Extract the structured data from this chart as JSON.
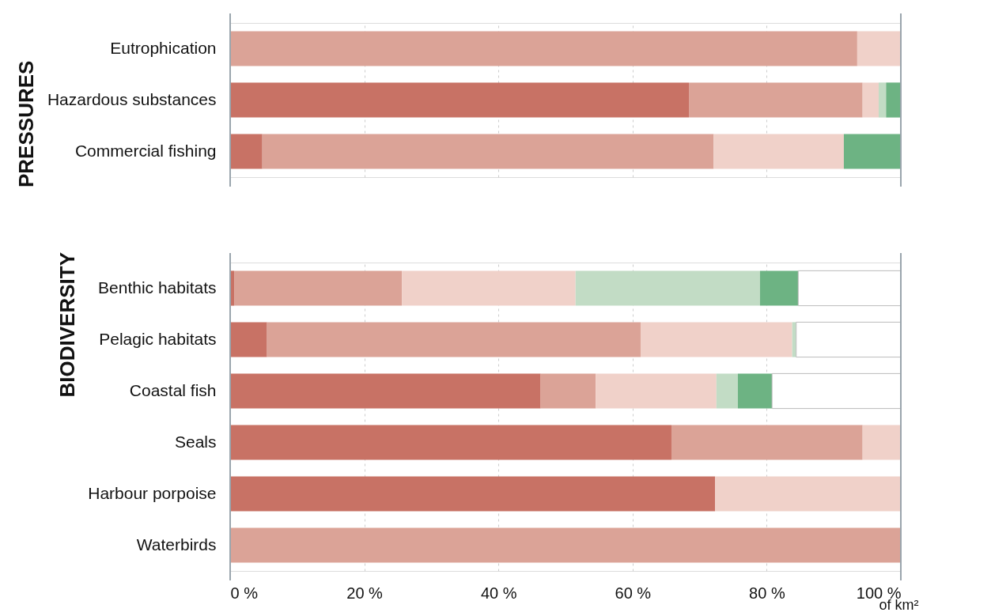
{
  "chart_data": [
    {
      "type": "bar",
      "title": "PRESSURES",
      "orientation": "horizontal",
      "stacked": true,
      "categories": [
        "Eutrophication",
        "Hazardous substances",
        "Commercial fishing"
      ],
      "series": [
        {
          "color": "#c87265",
          "values": [
            0,
            68.4,
            4.8
          ]
        },
        {
          "color": "#dba397",
          "values": [
            93.5,
            25.9,
            67.3
          ]
        },
        {
          "color": "#f0d1c9",
          "values": [
            6.5,
            2.4,
            19.4
          ]
        },
        {
          "color": "#c2dcc5",
          "values": [
            0,
            1.1,
            0
          ]
        },
        {
          "color": "#6db383",
          "values": [
            0,
            2.2,
            8.5
          ]
        }
      ],
      "xlim": [
        0,
        100
      ],
      "xticks": [
        0,
        20,
        40,
        60,
        80,
        100
      ],
      "grid": "x",
      "legend": false,
      "tick_labels": "y"
    },
    {
      "type": "bar",
      "title": "BIODIVERSITY",
      "orientation": "horizontal",
      "stacked": true,
      "xlabel": "of km²",
      "categories": [
        "Benthic habitats",
        "Pelagic habitats",
        "Coastal fish",
        "Seals",
        "Harbour porpoise",
        "Waterbirds"
      ],
      "series": [
        {
          "color": "#c87265",
          "values": [
            0.6,
            5.5,
            46.3,
            65.8,
            72.3,
            0
          ]
        },
        {
          "color": "#dba397",
          "values": [
            25.0,
            55.7,
            8.2,
            28.5,
            0,
            100
          ]
        },
        {
          "color": "#f0d1c9",
          "values": [
            25.9,
            22.6,
            18.0,
            5.7,
            27.7,
            0
          ]
        },
        {
          "color": "#c2dcc5",
          "values": [
            27.5,
            0.6,
            3.2,
            0,
            0,
            0
          ]
        },
        {
          "color": "#6db383",
          "values": [
            5.7,
            0,
            5.1,
            0,
            0,
            0
          ]
        },
        {
          "color": "#ffffff",
          "values": [
            15.3,
            15.6,
            19.2,
            0,
            0,
            0
          ]
        }
      ],
      "xlim": [
        0,
        100
      ],
      "xticks": [
        {
          "value": 0,
          "label": "0 %"
        },
        {
          "value": 20,
          "label": "20 %"
        },
        {
          "value": 40,
          "label": "40 %"
        },
        {
          "value": 60,
          "label": "60 %"
        },
        {
          "value": 80,
          "label": "80 %"
        },
        {
          "value": 100,
          "label": "100 %"
        }
      ],
      "grid": "x",
      "legend": false
    }
  ]
}
